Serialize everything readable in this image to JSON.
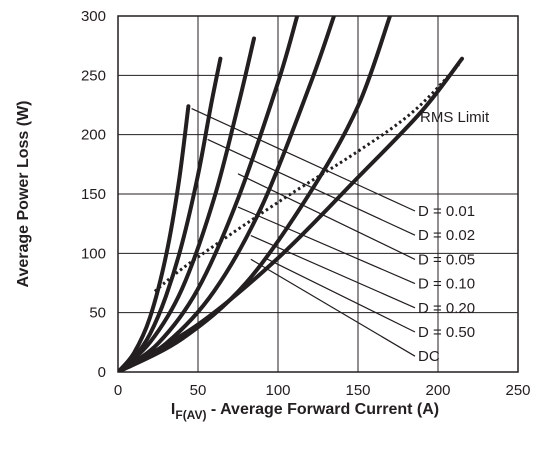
{
  "chart_data": {
    "type": "line",
    "xlabel": {
      "main": "I",
      "sub": "F(AV)",
      "rest": " - Average Forward Current (A)"
    },
    "ylabel": "Average Power Loss (W)",
    "xlim": [
      0,
      250
    ],
    "ylim": [
      0,
      300
    ],
    "xticks": [
      "0",
      "50",
      "100",
      "150",
      "200",
      "250"
    ],
    "yticks": [
      "0",
      "50",
      "100",
      "150",
      "200",
      "250",
      "300"
    ],
    "grid": true,
    "colors": {
      "curve": "#231f20",
      "grid": "#231f20",
      "axis": "#231f20"
    },
    "series": [
      {
        "name": "D = 0.01",
        "points": [
          [
            0,
            0
          ],
          [
            10,
            16
          ],
          [
            20,
            46
          ],
          [
            30,
            98
          ],
          [
            38,
            160
          ],
          [
            44,
            224
          ]
        ],
        "label_anchor": [
          46,
          222
        ]
      },
      {
        "name": "D = 0.02",
        "points": [
          [
            0,
            0
          ],
          [
            10,
            12
          ],
          [
            20,
            32
          ],
          [
            30,
            64
          ],
          [
            40,
            108
          ],
          [
            50,
            166
          ],
          [
            58,
            224
          ],
          [
            64,
            264
          ]
        ],
        "label_anchor": [
          56,
          196
        ]
      },
      {
        "name": "D = 0.05",
        "points": [
          [
            0,
            0
          ],
          [
            20,
            25
          ],
          [
            40,
            70
          ],
          [
            60,
            146
          ],
          [
            75,
            224
          ],
          [
            85,
            281
          ]
        ],
        "label_anchor": [
          75,
          167
        ]
      },
      {
        "name": "D = 0.10",
        "points": [
          [
            0,
            0
          ],
          [
            25,
            24
          ],
          [
            50,
            70
          ],
          [
            75,
            146
          ],
          [
            100,
            244
          ],
          [
            112,
            300
          ]
        ],
        "label_anchor": [
          75,
          139
        ]
      },
      {
        "name": "D = 0.20",
        "points": [
          [
            0,
            0
          ],
          [
            30,
            24
          ],
          [
            60,
            68
          ],
          [
            90,
            140
          ],
          [
            120,
            242
          ],
          [
            135,
            300
          ]
        ],
        "label_anchor": [
          83,
          115
        ]
      },
      {
        "name": "D = 0.50",
        "points": [
          [
            0,
            0
          ],
          [
            40,
            28
          ],
          [
            80,
            75
          ],
          [
            120,
            151
          ],
          [
            150,
            224
          ],
          [
            170,
            300
          ]
        ],
        "label_anchor": [
          92,
          96
        ]
      },
      {
        "name": "DC",
        "points": [
          [
            0,
            0
          ],
          [
            50,
            40
          ],
          [
            100,
            96
          ],
          [
            150,
            164
          ],
          [
            190,
            220
          ],
          [
            215,
            264
          ]
        ],
        "label_anchor": [
          83,
          95
        ]
      }
    ],
    "rms_limit": {
      "name": "RMS Limit",
      "points": [
        [
          23,
          68
        ],
        [
          45,
          92
        ],
        [
          100,
          143
        ],
        [
          150,
          186
        ],
        [
          185,
          220
        ],
        [
          213,
          259
        ]
      ]
    }
  }
}
